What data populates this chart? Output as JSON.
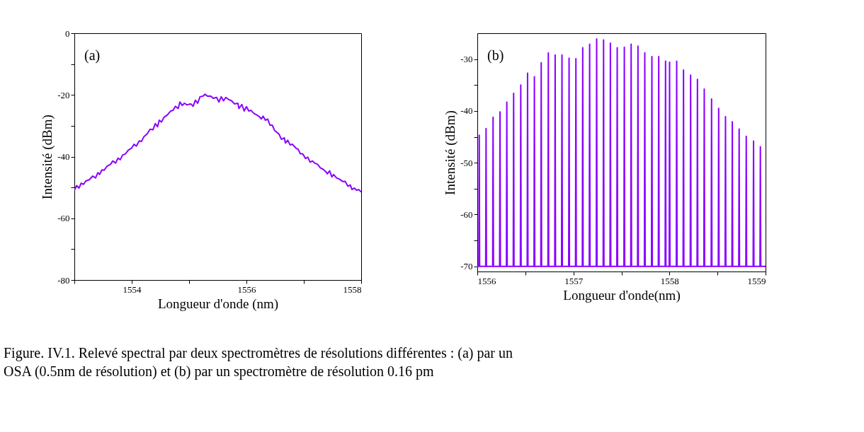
{
  "chart_data": [
    {
      "type": "line",
      "xlabel": "Longueur d'onde (nm)",
      "ylabel": "Intensité (dBm)",
      "annotations": [
        "(a)",
        "Figure. IV.1. Relevé spectral par deux spectromètres de résolutions différentes : (a) par un OSA (0.5nm de résolution) et (b) par un spectromètre de résolution 0.16 pm"
      ],
      "xlim": [
        1553,
        1558
      ],
      "xticks": [
        {
          "value": 1553,
          "label": null
        },
        1554,
        {
          "value": 1555,
          "label": null
        },
        1556,
        {
          "value": 1557,
          "label": null
        },
        1558
      ],
      "ylim": [
        -80,
        0
      ],
      "yticks": [
        -80,
        {
          "value": -70,
          "label": null
        },
        -60,
        {
          "value": -50,
          "label": null
        },
        -40,
        {
          "value": -30,
          "label": null
        },
        -20,
        {
          "value": -10,
          "label": null
        },
        0
      ],
      "series": [
        {
          "color": "#8a00ff",
          "x": [
            1553.0,
            1553.04,
            1553.08,
            1553.12,
            1553.16,
            1553.2,
            1553.26,
            1553.32,
            1553.37,
            1553.41,
            1553.44,
            1553.48,
            1553.52,
            1553.57,
            1553.63,
            1553.67,
            1553.72,
            1553.76,
            1553.8,
            1553.84,
            1553.89,
            1553.94,
            1554.0,
            1554.04,
            1554.08,
            1554.13,
            1554.17,
            1554.21,
            1554.27,
            1554.32,
            1554.37,
            1554.41,
            1554.45,
            1554.48,
            1554.52,
            1554.56,
            1554.62,
            1554.68,
            1554.72,
            1554.76,
            1554.81,
            1554.84,
            1554.88,
            1554.92,
            1554.96,
            1555.03,
            1555.07,
            1555.11,
            1555.15,
            1555.19,
            1555.24,
            1555.28,
            1555.32,
            1555.38,
            1555.42,
            1555.48,
            1555.52,
            1555.56,
            1555.6,
            1555.64,
            1555.69,
            1555.74,
            1555.79,
            1555.85,
            1555.87,
            1555.92,
            1555.96,
            1556.0,
            1556.04,
            1556.08,
            1556.13,
            1556.18,
            1556.22,
            1556.26,
            1556.29,
            1556.33,
            1556.37,
            1556.41,
            1556.45,
            1556.49,
            1556.53,
            1556.57,
            1556.61,
            1556.66,
            1556.68,
            1556.72,
            1556.76,
            1556.8,
            1556.86,
            1556.9,
            1556.94,
            1556.98,
            1557.03,
            1557.07,
            1557.11,
            1557.15,
            1557.19,
            1557.24,
            1557.29,
            1557.33,
            1557.38,
            1557.41,
            1557.45,
            1557.49,
            1557.52,
            1557.57,
            1557.62,
            1557.68,
            1557.72,
            1557.77,
            1557.81,
            1557.84,
            1557.88,
            1557.92,
            1557.96,
            1558.0
          ],
          "values": [
            -50.9,
            -49.4,
            -50.2,
            -48.6,
            -49.0,
            -47.9,
            -47.5,
            -46.3,
            -46.9,
            -45.2,
            -45.8,
            -44.3,
            -44.4,
            -43.1,
            -42.5,
            -41.4,
            -42.1,
            -40.5,
            -41.0,
            -39.5,
            -39.1,
            -37.9,
            -37.2,
            -36.0,
            -36.6,
            -34.9,
            -35.1,
            -33.6,
            -32.6,
            -31.1,
            -31.3,
            -29.3,
            -30.3,
            -28.2,
            -28.8,
            -27.3,
            -26.5,
            -25.2,
            -25.0,
            -23.7,
            -24.4,
            -22.3,
            -23.4,
            -22.7,
            -23.2,
            -22.9,
            -23.7,
            -21.7,
            -22.7,
            -20.6,
            -20.4,
            -19.8,
            -20.4,
            -20.4,
            -21.1,
            -20.8,
            -22.3,
            -20.6,
            -21.9,
            -20.8,
            -21.5,
            -21.9,
            -22.9,
            -22.7,
            -24.4,
            -23.1,
            -25.2,
            -23.8,
            -25.2,
            -25.0,
            -26.0,
            -26.5,
            -27.0,
            -27.8,
            -26.9,
            -28.2,
            -27.8,
            -29.8,
            -29.8,
            -31.5,
            -32.1,
            -32.8,
            -34.4,
            -33.9,
            -35.6,
            -34.7,
            -36.2,
            -36.0,
            -37.2,
            -37.6,
            -39.1,
            -39.1,
            -40.6,
            -40.2,
            -41.8,
            -41.4,
            -42.1,
            -42.5,
            -43.7,
            -44.0,
            -44.8,
            -45.6,
            -44.6,
            -46.6,
            -45.8,
            -46.9,
            -47.3,
            -48.1,
            -48.0,
            -49.6,
            -49.2,
            -50.7,
            -50.2,
            -50.9,
            -50.7,
            -51.5
          ]
        }
      ]
    },
    {
      "type": "line",
      "xlabel": "Longueur d'onde(nm)",
      "ylabel": "Intensité (dBm)",
      "annotations": [
        "(b)"
      ],
      "xlim": [
        1556,
        1559
      ],
      "xticks": [
        1556,
        {
          "value": 1556.5,
          "label": null
        },
        1557,
        {
          "value": 1557.5,
          "label": null
        },
        1558,
        {
          "value": 1558.5,
          "label": null
        },
        1559
      ],
      "ylim": [
        -71,
        -25
      ],
      "yticks": [
        -70,
        {
          "value": -65,
          "label": null
        },
        -60,
        {
          "value": -55,
          "label": null
        },
        -50,
        {
          "value": -45,
          "label": null
        },
        -40,
        {
          "value": -35,
          "label": null
        },
        -30
      ],
      "series": [
        {
          "color": "#8a00ff",
          "x": [
            1556,
            1556.016,
            1556.02,
            1556.024,
            1556.087,
            1556.091,
            1556.095,
            1556.16,
            1556.164,
            1556.168,
            1556.232,
            1556.236,
            1556.24,
            1556.303,
            1556.307,
            1556.311,
            1556.374,
            1556.378,
            1556.382,
            1556.448,
            1556.452,
            1556.456,
            1556.519,
            1556.523,
            1556.527,
            1556.59,
            1556.594,
            1556.598,
            1556.661,
            1556.665,
            1556.669,
            1556.735,
            1556.739,
            1556.743,
            1556.806,
            1556.81,
            1556.814,
            1556.877,
            1556.881,
            1556.885,
            1556.951,
            1556.955,
            1556.959,
            1557.022,
            1557.026,
            1557.03,
            1557.093,
            1557.097,
            1557.101,
            1557.165,
            1557.169,
            1557.173,
            1557.238,
            1557.242,
            1557.246,
            1557.31,
            1557.314,
            1557.318,
            1557.381,
            1557.385,
            1557.389,
            1557.452,
            1557.456,
            1557.46,
            1557.526,
            1557.53,
            1557.534,
            1557.597,
            1557.601,
            1557.605,
            1557.668,
            1557.672,
            1557.676,
            1557.739,
            1557.743,
            1557.747,
            1557.813,
            1557.817,
            1557.821,
            1557.884,
            1557.888,
            1557.892,
            1557.955,
            1557.959,
            1557.963,
            1557.997,
            1558.001,
            1558.005,
            1558.071,
            1558.075,
            1558.079,
            1558.142,
            1558.146,
            1558.15,
            1558.216,
            1558.22,
            1558.224,
            1558.287,
            1558.291,
            1558.295,
            1558.358,
            1558.362,
            1558.366,
            1558.434,
            1558.438,
            1558.442,
            1558.508,
            1558.512,
            1558.516,
            1558.579,
            1558.583,
            1558.587,
            1558.65,
            1558.654,
            1558.658,
            1558.721,
            1558.725,
            1558.729,
            1558.795,
            1558.799,
            1558.803,
            1558.871,
            1558.875,
            1558.879,
            1558.942,
            1558.946,
            1558.95,
            1559
          ],
          "values": [
            -70,
            -70,
            -44.7,
            -70,
            -70,
            -43.4,
            -70,
            -70,
            -41.2,
            -70,
            -70,
            -40.2,
            -70,
            -70,
            -38.3,
            -70,
            -70,
            -36.6,
            -70,
            -70,
            -35.0,
            -70,
            -70,
            -32.7,
            -70,
            -70,
            -33.4,
            -70,
            -70,
            -30.7,
            -70,
            -70,
            -28.8,
            -70,
            -70,
            -29.2,
            -70,
            -70,
            -29.2,
            -70,
            -70,
            -29.8,
            -70,
            -70,
            -29.9,
            -70,
            -70,
            -27.8,
            -70,
            -70,
            -27.1,
            -70,
            -70,
            -26.1,
            -70,
            -70,
            -26.3,
            -70,
            -70,
            -26.9,
            -70,
            -70,
            -27.8,
            -70,
            -70,
            -27.7,
            -70,
            -70,
            -27.1,
            -70,
            -70,
            -27.5,
            -70,
            -70,
            -28.8,
            -70,
            -70,
            -29.5,
            -70,
            -70,
            -29.5,
            -70,
            -70,
            -30.4,
            -70,
            -70,
            -30.6,
            -70,
            -70,
            -30.4,
            -70,
            -70,
            -32.1,
            -70,
            -70,
            -33.1,
            -70,
            -70,
            -33.9,
            -70,
            -70,
            -35.8,
            -70,
            -70,
            -37.7,
            -70,
            -70,
            -39.5,
            -70,
            -70,
            -41.1,
            -70,
            -70,
            -42.1,
            -70,
            -70,
            -43.5,
            -70,
            -70,
            -44.9,
            -70,
            -70,
            -45.8,
            -70,
            -70,
            -46.9,
            -70,
            -70
          ]
        }
      ]
    }
  ]
}
